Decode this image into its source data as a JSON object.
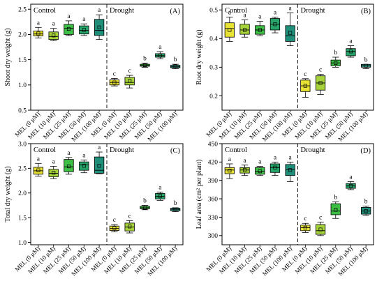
{
  "figure": {
    "colors": {
      "mel0": "#e8e234",
      "mel10": "#a6d23a",
      "mel25": "#3dbf45",
      "mel50": "#25a56a",
      "mel100": "#1f8f7a",
      "frame": "#000000",
      "mean_marker": "#000000"
    }
  },
  "chart_data": [
    {
      "id": "A",
      "type": "box",
      "panel_label": "(A)",
      "ylabel": "Shoot dry weight (g)",
      "ylim": [
        0.5,
        2.6
      ],
      "yticks": [
        "0.5",
        "1.0",
        "1.5",
        "2.0",
        "2.5"
      ],
      "groups": [
        "Control",
        "Drought"
      ],
      "categories": [
        "MEL (0 μM)",
        "MEL (10 μM)",
        "MEL (25 μM)",
        "MEL (50 μM)",
        "MEL (100 μM)"
      ],
      "control": [
        {
          "min": 1.93,
          "q1": 1.97,
          "median": 2.01,
          "q3": 2.07,
          "max": 2.14,
          "mean": 2.02,
          "sig": "a"
        },
        {
          "min": 1.88,
          "q1": 1.9,
          "median": 1.96,
          "q3": 2.05,
          "max": 2.12,
          "mean": 1.98,
          "sig": "a"
        },
        {
          "min": 1.98,
          "q1": 2.0,
          "median": 2.12,
          "q3": 2.2,
          "max": 2.27,
          "mean": 2.11,
          "sig": "a"
        },
        {
          "min": 1.98,
          "q1": 2.01,
          "median": 2.08,
          "q3": 2.17,
          "max": 2.21,
          "mean": 2.09,
          "sig": "a"
        },
        {
          "min": 1.9,
          "q1": 1.98,
          "median": 2.08,
          "q3": 2.3,
          "max": 2.39,
          "mean": 2.14,
          "sig": "a"
        }
      ],
      "drought": [
        {
          "min": 0.98,
          "q1": 1.0,
          "median": 1.05,
          "q3": 1.1,
          "max": 1.13,
          "mean": 1.05,
          "sig": "c"
        },
        {
          "min": 0.94,
          "q1": 1.0,
          "median": 1.05,
          "q3": 1.15,
          "max": 1.19,
          "mean": 1.08,
          "sig": "c"
        },
        {
          "min": 1.35,
          "q1": 1.37,
          "median": 1.39,
          "q3": 1.41,
          "max": 1.43,
          "mean": 1.39,
          "sig": "b"
        },
        {
          "min": 1.52,
          "q1": 1.55,
          "median": 1.58,
          "q3": 1.62,
          "max": 1.66,
          "mean": 1.58,
          "sig": "a"
        },
        {
          "min": 1.32,
          "q1": 1.34,
          "median": 1.36,
          "q3": 1.39,
          "max": 1.41,
          "mean": 1.37,
          "sig": "b"
        }
      ]
    },
    {
      "id": "B",
      "type": "box",
      "panel_label": "(B)",
      "ylabel": "Root dry weight (g)",
      "ylim": [
        0.15,
        0.52
      ],
      "yticks": [
        "0.2",
        "0.3",
        "0.4",
        "0.5"
      ],
      "groups": [
        "Control",
        "Drought"
      ],
      "categories": [
        "MEL (0 μM)",
        "MEL (10 μM)",
        "MEL (25 μM)",
        "MEL (50 μM)",
        "MEL (100 μM)"
      ],
      "control": [
        {
          "min": 0.39,
          "q1": 0.405,
          "median": 0.435,
          "q3": 0.455,
          "max": 0.475,
          "mean": 0.43,
          "sig": "a"
        },
        {
          "min": 0.405,
          "q1": 0.415,
          "median": 0.43,
          "q3": 0.45,
          "max": 0.465,
          "mean": 0.43,
          "sig": "a"
        },
        {
          "min": 0.41,
          "q1": 0.415,
          "median": 0.43,
          "q3": 0.445,
          "max": 0.46,
          "mean": 0.43,
          "sig": "a"
        },
        {
          "min": 0.42,
          "q1": 0.43,
          "median": 0.45,
          "q3": 0.47,
          "max": 0.475,
          "mean": 0.45,
          "sig": "a"
        },
        {
          "min": 0.375,
          "q1": 0.39,
          "median": 0.41,
          "q3": 0.445,
          "max": 0.49,
          "mean": 0.42,
          "sig": "a"
        }
      ],
      "drought": [
        {
          "min": 0.195,
          "q1": 0.215,
          "median": 0.235,
          "q3": 0.255,
          "max": 0.26,
          "mean": 0.235,
          "sig": "c"
        },
        {
          "min": 0.205,
          "q1": 0.22,
          "median": 0.245,
          "q3": 0.27,
          "max": 0.275,
          "mean": 0.245,
          "sig": "c"
        },
        {
          "min": 0.3,
          "q1": 0.305,
          "median": 0.315,
          "q3": 0.325,
          "max": 0.335,
          "mean": 0.315,
          "sig": "b"
        },
        {
          "min": 0.335,
          "q1": 0.34,
          "median": 0.355,
          "q3": 0.365,
          "max": 0.375,
          "mean": 0.355,
          "sig": "a"
        },
        {
          "min": 0.295,
          "q1": 0.3,
          "median": 0.305,
          "q3": 0.31,
          "max": 0.31,
          "mean": 0.305,
          "sig": "b"
        }
      ]
    },
    {
      "id": "C",
      "type": "box",
      "panel_label": "(C)",
      "ylabel": "Total dry weight (g)",
      "ylim": [
        0.95,
        3.0
      ],
      "yticks": [
        "1.0",
        "1.5",
        "2.0",
        "2.5",
        "3.0"
      ],
      "groups": [
        "Control",
        "Drought"
      ],
      "categories": [
        "MEL (0 μM)",
        "MEL (10 μM)",
        "MEL (25 μM)",
        "MEL (50 μM)",
        "MEL (100 μM)"
      ],
      "control": [
        {
          "min": 2.34,
          "q1": 2.38,
          "median": 2.45,
          "q3": 2.52,
          "max": 2.6,
          "mean": 2.46,
          "sig": "a"
        },
        {
          "min": 2.29,
          "q1": 2.33,
          "median": 2.4,
          "q3": 2.48,
          "max": 2.54,
          "mean": 2.41,
          "sig": "a"
        },
        {
          "min": 2.38,
          "q1": 2.43,
          "median": 2.53,
          "q3": 2.68,
          "max": 2.72,
          "mean": 2.54,
          "sig": "a"
        },
        {
          "min": 2.41,
          "q1": 2.46,
          "median": 2.57,
          "q3": 2.63,
          "max": 2.67,
          "mean": 2.55,
          "sig": "a"
        },
        {
          "min": 2.39,
          "q1": 2.4,
          "median": 2.46,
          "q3": 2.73,
          "max": 2.83,
          "mean": 2.55,
          "sig": "a"
        }
      ],
      "drought": [
        {
          "min": 1.21,
          "q1": 1.24,
          "median": 1.28,
          "q3": 1.33,
          "max": 1.36,
          "mean": 1.29,
          "sig": "c"
        },
        {
          "min": 1.19,
          "q1": 1.23,
          "median": 1.31,
          "q3": 1.39,
          "max": 1.44,
          "mean": 1.32,
          "sig": "c"
        },
        {
          "min": 1.66,
          "q1": 1.68,
          "median": 1.7,
          "q3": 1.73,
          "max": 1.75,
          "mean": 1.7,
          "sig": "b"
        },
        {
          "min": 1.85,
          "q1": 1.88,
          "median": 1.93,
          "q3": 1.99,
          "max": 2.02,
          "mean": 1.94,
          "sig": "a"
        },
        {
          "min": 1.62,
          "q1": 1.64,
          "median": 1.67,
          "q3": 1.69,
          "max": 1.7,
          "mean": 1.67,
          "sig": "b"
        }
      ]
    },
    {
      "id": "D",
      "type": "box",
      "panel_label": "(D)",
      "ylabel": "Leaf area (cm² per plant)",
      "ylim": [
        285,
        450
      ],
      "yticks": [
        "300",
        "330",
        "360",
        "390",
        "420",
        "450"
      ],
      "groups": [
        "Control",
        "Drought"
      ],
      "categories": [
        "MEL (0 μM)",
        "MEL (10 μM)",
        "MEL (25 μM)",
        "MEL (50 μM)",
        "MEL (100 μM)"
      ],
      "control": [
        {
          "min": 393,
          "q1": 401,
          "median": 407,
          "q3": 411,
          "max": 417,
          "mean": 406,
          "sig": "a"
        },
        {
          "min": 398,
          "q1": 402,
          "median": 407,
          "q3": 411,
          "max": 415,
          "mean": 407,
          "sig": "a"
        },
        {
          "min": 398,
          "q1": 400,
          "median": 405,
          "q3": 411,
          "max": 413,
          "mean": 405,
          "sig": "a"
        },
        {
          "min": 398,
          "q1": 403,
          "median": 411,
          "q3": 417,
          "max": 420,
          "mean": 411,
          "sig": "a"
        },
        {
          "min": 388,
          "q1": 398,
          "median": 408,
          "q3": 416,
          "max": 420,
          "mean": 407,
          "sig": "a"
        }
      ],
      "drought": [
        {
          "min": 305,
          "q1": 308,
          "median": 313,
          "q3": 317,
          "max": 320,
          "mean": 313,
          "sig": "c"
        },
        {
          "min": 300,
          "q1": 302,
          "median": 308,
          "q3": 318,
          "max": 322,
          "mean": 310,
          "sig": "c"
        },
        {
          "min": 328,
          "q1": 334,
          "median": 340,
          "q3": 352,
          "max": 355,
          "mean": 342,
          "sig": "b"
        },
        {
          "min": 375,
          "q1": 377,
          "median": 381,
          "q3": 385,
          "max": 388,
          "mean": 381,
          "sig": "a"
        },
        {
          "min": 333,
          "q1": 335,
          "median": 340,
          "q3": 346,
          "max": 348,
          "mean": 340,
          "sig": "b"
        }
      ]
    }
  ]
}
